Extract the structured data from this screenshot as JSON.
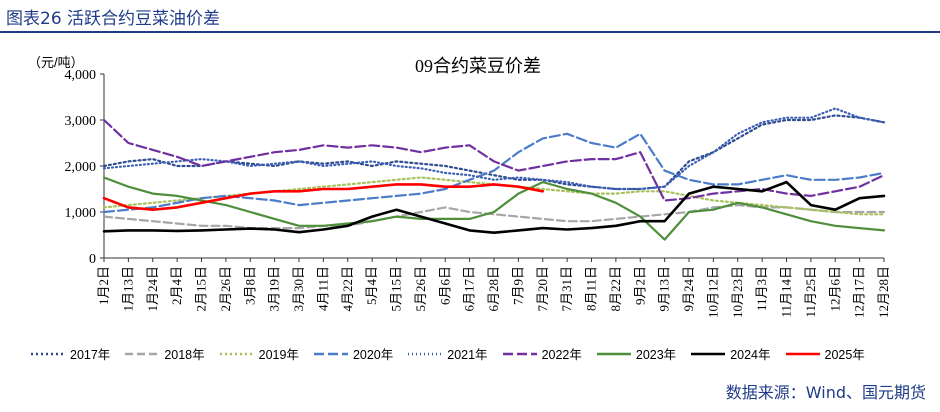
{
  "figure": {
    "header": "图表26  活跃合约豆菜油价差",
    "source": "数据来源：Wind、国元期货"
  },
  "chart_data": {
    "type": "line",
    "title": "09合约菜豆价差",
    "ylabel": "（元/吨）",
    "ylim": [
      0,
      4000
    ],
    "yticks": [
      0,
      1000,
      2000,
      3000,
      4000
    ],
    "ytick_labels": [
      "0",
      "1,000",
      "2,000",
      "3,000",
      "4,000"
    ],
    "x_categories": [
      "1月2日",
      "1月13日",
      "1月24日",
      "2月4日",
      "2月15日",
      "2月26日",
      "3月8日",
      "3月19日",
      "3月30日",
      "4月11日",
      "4月22日",
      "5月4日",
      "5月15日",
      "5月26日",
      "6月6日",
      "6月17日",
      "6月28日",
      "7月9日",
      "7月20日",
      "7月31日",
      "8月11日",
      "8月22日",
      "9月2日",
      "9月13日",
      "9月24日",
      "10月12日",
      "10月23日",
      "11月3日",
      "11月14日",
      "11月25日",
      "12月6日",
      "12月17日",
      "12月28日"
    ],
    "grid": false,
    "legend_position": "bottom",
    "series": [
      {
        "name": "2017年",
        "color": "#2f4b8f",
        "dash": "2,3",
        "values": [
          2000,
          2100,
          2150,
          2000,
          2000,
          2100,
          2050,
          2000,
          2100,
          2050,
          2100,
          2000,
          2100,
          2050,
          2000,
          1900,
          1800,
          1700,
          1700,
          1600,
          1550,
          1500,
          1500,
          1550,
          2100,
          2300,
          2600,
          2900,
          3000,
          3000,
          3100,
          3050,
          2950
        ]
      },
      {
        "name": "2018年",
        "color": "#a6a6a6",
        "dash": "8,4",
        "values": [
          900,
          850,
          800,
          750,
          700,
          700,
          650,
          650,
          650,
          700,
          700,
          800,
          900,
          1000,
          1100,
          1000,
          950,
          900,
          850,
          800,
          800,
          850,
          900,
          950,
          1000,
          1100,
          1150,
          1100,
          1100,
          1050,
          1000,
          1000,
          1000
        ]
      },
      {
        "name": "2019年",
        "color": "#a9c25d",
        "dash": "2,3",
        "values": [
          1100,
          1150,
          1200,
          1250,
          1300,
          1350,
          1400,
          1450,
          1500,
          1550,
          1600,
          1650,
          1700,
          1750,
          1700,
          1650,
          1600,
          1550,
          1500,
          1450,
          1400,
          1400,
          1450,
          1450,
          1350,
          1250,
          1200,
          1150,
          1100,
          1050,
          1000,
          950,
          950
        ]
      },
      {
        "name": "2020年",
        "color": "#4a7cc9",
        "dash": "10,4",
        "values": [
          1000,
          1050,
          1100,
          1200,
          1300,
          1350,
          1300,
          1250,
          1150,
          1200,
          1250,
          1300,
          1350,
          1400,
          1500,
          1700,
          1900,
          2300,
          2600,
          2700,
          2500,
          2400,
          2700,
          1900,
          1700,
          1600,
          1600,
          1700,
          1800,
          1700,
          1700,
          1750,
          1850
        ]
      },
      {
        "name": "2021年",
        "color": "#3a5fb5",
        "dash": "1,3",
        "values": [
          1950,
          2000,
          2050,
          2100,
          2150,
          2100,
          2000,
          2050,
          2100,
          2000,
          2050,
          2100,
          2000,
          1950,
          1850,
          1800,
          1700,
          1750,
          1700,
          1650,
          1550,
          1500,
          1500,
          1550,
          2000,
          2300,
          2700,
          2950,
          3050,
          3050,
          3250,
          3050,
          2950
        ]
      },
      {
        "name": "2022年",
        "color": "#7030a0",
        "dash": "10,4",
        "values": [
          3000,
          2500,
          2350,
          2200,
          2000,
          2100,
          2200,
          2300,
          2350,
          2450,
          2400,
          2450,
          2400,
          2300,
          2400,
          2450,
          2100,
          1900,
          2000,
          2100,
          2150,
          2150,
          2300,
          1250,
          1300,
          1400,
          1450,
          1500,
          1400,
          1350,
          1450,
          1550,
          1800
        ]
      },
      {
        "name": "2023年",
        "color": "#4e8f3c",
        "dash": "",
        "values": [
          1750,
          1550,
          1400,
          1350,
          1250,
          1150,
          1000,
          850,
          700,
          700,
          750,
          800,
          900,
          850,
          850,
          850,
          1000,
          1400,
          1650,
          1500,
          1400,
          1200,
          900,
          400,
          1000,
          1050,
          1200,
          1100,
          950,
          800,
          700,
          650,
          600
        ]
      },
      {
        "name": "2024年",
        "color": "#000000",
        "dash": "",
        "values": [
          580,
          600,
          600,
          590,
          600,
          620,
          640,
          620,
          560,
          620,
          700,
          900,
          1050,
          900,
          750,
          600,
          550,
          600,
          650,
          620,
          650,
          700,
          800,
          800,
          1400,
          1550,
          1500,
          1450,
          1650,
          1150,
          1050,
          1300,
          1350
        ]
      },
      {
        "name": "2025年",
        "color": "#ff0000",
        "dash": "",
        "values": [
          1300,
          1100,
          1050,
          1100,
          1200,
          1300,
          1400,
          1450,
          1450,
          1500,
          1500,
          1550,
          1600,
          1600,
          1550,
          1550,
          1600,
          1550,
          1450
        ]
      }
    ]
  }
}
